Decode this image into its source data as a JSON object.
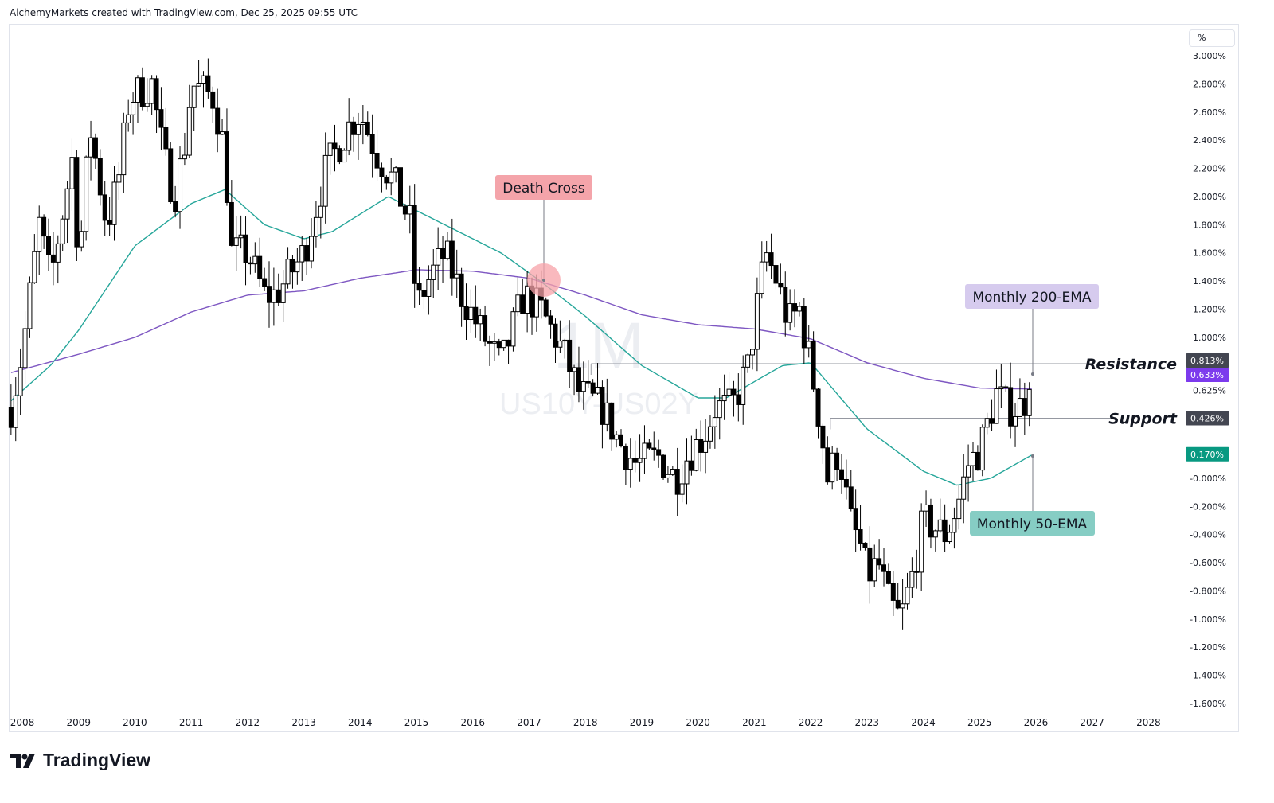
{
  "header": {
    "text": "AlchemyMarkets created with TradingView.com, Dec 25, 2025 09:55 UTC"
  },
  "branding": {
    "logo_text": "TradingView"
  },
  "axis_unit": "%",
  "watermark": {
    "interval": "1M",
    "symbol": "US10Y-US02Y"
  },
  "chart_data": {
    "type": "candlestick",
    "title": "US10Y-US02Y, 1M",
    "interval": "Monthly",
    "xlabel": "",
    "ylabel": "%",
    "ylim": [
      -1.6,
      3.0
    ],
    "xlim": [
      2007.78,
      2028.6
    ],
    "x_ticks": [
      "2008",
      "2009",
      "2010",
      "2011",
      "2012",
      "2013",
      "2014",
      "2015",
      "2016",
      "2017",
      "2018",
      "2019",
      "2020",
      "2021",
      "2022",
      "2023",
      "2024",
      "2025",
      "2026",
      "2027",
      "2028"
    ],
    "y_ticks": [
      "3.000%",
      "2.800%",
      "2.600%",
      "2.400%",
      "2.200%",
      "2.000%",
      "1.800%",
      "1.600%",
      "1.400%",
      "1.200%",
      "1.000%",
      "0.625%",
      "-0.000%",
      "-0.200%",
      "-0.400%",
      "-0.600%",
      "-0.800%",
      "-1.000%",
      "-1.200%",
      "-1.400%",
      "-1.600%"
    ],
    "y_tick_values": [
      3.0,
      2.8,
      2.6,
      2.4,
      2.2,
      2.0,
      1.8,
      1.6,
      1.4,
      1.2,
      1.0,
      0.625,
      0.0,
      -0.2,
      -0.4,
      -0.6,
      -0.8,
      -1.0,
      -1.2,
      -1.4,
      -1.6
    ],
    "price_close_path": [
      [
        2007.8,
        0.5
      ],
      [
        2008.0,
        0.9
      ],
      [
        2008.3,
        1.8
      ],
      [
        2008.5,
        1.4
      ],
      [
        2008.9,
        2.3
      ],
      [
        2009.0,
        1.5
      ],
      [
        2009.2,
        2.5
      ],
      [
        2009.5,
        1.8
      ],
      [
        2009.7,
        2.1
      ],
      [
        2009.9,
        2.7
      ],
      [
        2010.3,
        2.8
      ],
      [
        2010.5,
        2.3
      ],
      [
        2010.7,
        2.0
      ],
      [
        2010.9,
        2.4
      ],
      [
        2011.0,
        2.8
      ],
      [
        2011.4,
        2.7
      ],
      [
        2011.6,
        2.3
      ],
      [
        2011.7,
        1.6
      ],
      [
        2012.0,
        1.6
      ],
      [
        2012.3,
        1.3
      ],
      [
        2012.5,
        1.3
      ],
      [
        2013.0,
        1.6
      ],
      [
        2013.4,
        2.2
      ],
      [
        2013.8,
        2.5
      ],
      [
        2014.0,
        2.6
      ],
      [
        2014.3,
        2.3
      ],
      [
        2014.6,
        2.1
      ],
      [
        2014.9,
        1.8
      ],
      [
        2015.0,
        1.2
      ],
      [
        2015.2,
        1.4
      ],
      [
        2015.5,
        1.6
      ],
      [
        2015.8,
        1.3
      ],
      [
        2016.2,
        1.0
      ],
      [
        2016.5,
        0.8
      ],
      [
        2016.9,
        1.3
      ],
      [
        2017.2,
        1.2
      ],
      [
        2017.6,
        0.9
      ],
      [
        2017.9,
        0.6
      ],
      [
        2018.3,
        0.5
      ],
      [
        2018.6,
        0.25
      ],
      [
        2018.9,
        0.1
      ],
      [
        2019.3,
        0.15
      ],
      [
        2019.6,
        0.0
      ],
      [
        2019.8,
        0.15
      ],
      [
        2020.1,
        0.3
      ],
      [
        2020.3,
        0.5
      ],
      [
        2020.6,
        0.5
      ],
      [
        2020.9,
        0.8
      ],
      [
        2021.0,
        1.1
      ],
      [
        2021.2,
        1.6
      ],
      [
        2021.4,
        1.4
      ],
      [
        2021.6,
        1.1
      ],
      [
        2021.8,
        1.2
      ],
      [
        2022.0,
        0.8
      ],
      [
        2022.2,
        0.3
      ],
      [
        2022.3,
        0.0
      ],
      [
        2022.5,
        0.2
      ],
      [
        2022.7,
        -0.3
      ],
      [
        2022.9,
        -0.5
      ],
      [
        2023.0,
        -0.7
      ],
      [
        2023.2,
        -0.6
      ],
      [
        2023.4,
        -0.9
      ],
      [
        2023.6,
        -1.0
      ],
      [
        2023.8,
        -0.7
      ],
      [
        2024.0,
        -0.3
      ],
      [
        2024.2,
        -0.35
      ],
      [
        2024.4,
        -0.4
      ],
      [
        2024.6,
        -0.2
      ],
      [
        2024.8,
        0.1
      ],
      [
        2025.0,
        0.2
      ],
      [
        2025.3,
        0.6
      ],
      [
        2025.5,
        0.5
      ],
      [
        2025.7,
        0.5
      ],
      [
        2025.95,
        0.63
      ]
    ],
    "series": [
      {
        "name": "Monthly 50-EMA",
        "color": "#26a69a",
        "points": [
          [
            2007.8,
            0.55
          ],
          [
            2008.5,
            0.8
          ],
          [
            2009.0,
            1.05
          ],
          [
            2010.0,
            1.65
          ],
          [
            2011.0,
            1.95
          ],
          [
            2011.6,
            2.05
          ],
          [
            2012.3,
            1.8
          ],
          [
            2013.0,
            1.7
          ],
          [
            2013.5,
            1.75
          ],
          [
            2014.5,
            2.0
          ],
          [
            2015.5,
            1.8
          ],
          [
            2016.5,
            1.6
          ],
          [
            2017.2,
            1.4
          ],
          [
            2018.0,
            1.15
          ],
          [
            2019.0,
            0.8
          ],
          [
            2020.0,
            0.57
          ],
          [
            2020.5,
            0.57
          ],
          [
            2021.5,
            0.8
          ],
          [
            2022.0,
            0.82
          ],
          [
            2023.0,
            0.35
          ],
          [
            2024.0,
            0.05
          ],
          [
            2024.6,
            -0.05
          ],
          [
            2025.2,
            0.0
          ],
          [
            2025.95,
            0.17
          ]
        ]
      },
      {
        "name": "Monthly 200-EMA",
        "color": "#7e57c2",
        "points": [
          [
            2007.8,
            0.75
          ],
          [
            2009.0,
            0.88
          ],
          [
            2010.0,
            1.0
          ],
          [
            2011.0,
            1.18
          ],
          [
            2012.0,
            1.3
          ],
          [
            2013.0,
            1.33
          ],
          [
            2014.0,
            1.42
          ],
          [
            2015.0,
            1.48
          ],
          [
            2016.0,
            1.47
          ],
          [
            2017.0,
            1.42
          ],
          [
            2018.0,
            1.3
          ],
          [
            2019.0,
            1.16
          ],
          [
            2020.0,
            1.09
          ],
          [
            2021.0,
            1.06
          ],
          [
            2022.0,
            0.99
          ],
          [
            2023.0,
            0.82
          ],
          [
            2024.0,
            0.71
          ],
          [
            2025.0,
            0.64
          ],
          [
            2025.95,
            0.633
          ]
        ]
      }
    ],
    "levels": [
      {
        "name": "Resistance",
        "value": 0.813,
        "tag": "0.813%",
        "from": 2018.1
      },
      {
        "name": "Support",
        "value": 0.426,
        "tag": "0.426%",
        "from": 2022.35
      }
    ],
    "price_tags": [
      {
        "label": "0.633%",
        "color": "#7c3aed",
        "value": 0.633
      },
      {
        "label": "0.170%",
        "color": "#089981",
        "value": 0.17
      }
    ],
    "annotations": [
      {
        "text": "Death Cross",
        "x": 2017.25,
        "value": 1.42,
        "bg": "#f4a4aa"
      },
      {
        "text": "Monthly 200-EMA",
        "x": 2025.95,
        "value": 0.74,
        "bg": "#d6cbee"
      },
      {
        "text": "Monthly 50-EMA",
        "x": 2025.95,
        "value": 0.16,
        "bg": "#86cdc4"
      }
    ]
  }
}
